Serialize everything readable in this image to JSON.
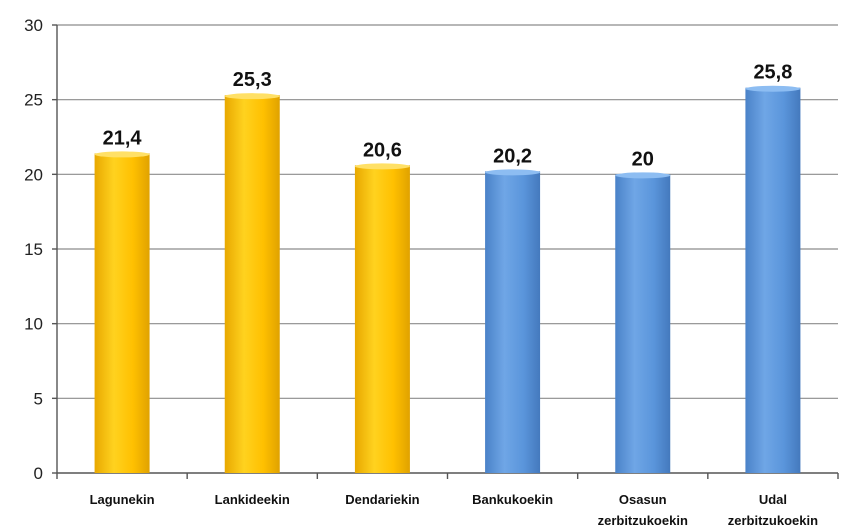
{
  "chart_data": {
    "type": "bar",
    "title": "",
    "xlabel": "",
    "ylabel": "",
    "ylim": [
      0,
      30
    ],
    "yticks": [
      0,
      5,
      10,
      15,
      20,
      25,
      30
    ],
    "ytick_labels": [
      "0",
      "5",
      "10",
      "15",
      "20",
      "25",
      "30"
    ],
    "grid": "horizontal",
    "legend": "none",
    "categories": [
      [
        "Lagunekin"
      ],
      [
        "Lankideekin"
      ],
      [
        "Dendariekin"
      ],
      [
        "Bankukoekin"
      ],
      [
        "Osasun",
        "zerbitzukoekin"
      ],
      [
        "Udal",
        "zerbitzukoekin"
      ]
    ],
    "values": [
      21.4,
      25.3,
      20.6,
      20.2,
      20,
      25.8
    ],
    "data_labels": [
      "21,4",
      "25,3",
      "20,6",
      "20,2",
      "20",
      "25,8"
    ],
    "bar_colors": [
      "#FFC000",
      "#FFC000",
      "#FFC000",
      "#5A95DB",
      "#5A95DB",
      "#5A95DB"
    ]
  }
}
